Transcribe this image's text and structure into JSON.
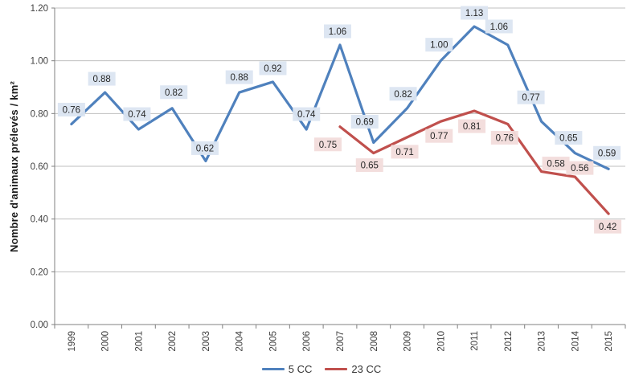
{
  "chart_data": {
    "type": "line",
    "title": "",
    "xlabel": "",
    "ylabel": "Nombre d'animaux prélevés / km²",
    "x": [
      1999,
      2000,
      2001,
      2002,
      2003,
      2004,
      2005,
      2006,
      2007,
      2008,
      2009,
      2010,
      2011,
      2012,
      2013,
      2014,
      2015
    ],
    "series": [
      {
        "name": "5 CC",
        "color": "#4F81BD",
        "label_bg": "#DBE5F1",
        "start_index": 0,
        "values": [
          0.76,
          0.88,
          0.74,
          0.82,
          0.62,
          0.88,
          0.92,
          0.74,
          1.06,
          0.69,
          0.82,
          1.0,
          1.13,
          1.06,
          0.77,
          0.65,
          0.59
        ],
        "label_dx": [
          0,
          -4,
          -2,
          2,
          -1,
          0,
          0,
          0,
          -3,
          -11,
          -5,
          -2,
          0,
          -11,
          -13,
          -8,
          -2
        ],
        "label_dy": [
          -18,
          -17,
          -19,
          -20,
          -16,
          -19,
          -17,
          -19,
          -17,
          -26,
          -18,
          -20,
          -17,
          -23,
          -30,
          -19,
          -20
        ]
      },
      {
        "name": "23 CC",
        "color": "#C0504D",
        "label_bg": "#F2DCDB",
        "start_index": 8,
        "values": [
          0.75,
          0.65,
          0.71,
          0.77,
          0.81,
          0.76,
          0.58,
          0.56,
          0.42
        ],
        "label_dx": [
          -15,
          -5,
          -3,
          -2,
          -3,
          -4,
          18,
          6,
          -1
        ],
        "label_dy": [
          22,
          15,
          18,
          18,
          19,
          17,
          -10,
          -11,
          16
        ]
      }
    ],
    "ylim": [
      0.0,
      1.2
    ],
    "ytick_step": 0.2,
    "ytick_labels": [
      "0.00",
      "0.20",
      "0.40",
      "0.60",
      "0.80",
      "1.00",
      "1.20"
    ],
    "label_decimals": 2,
    "grid": "horizontal",
    "legend_position": "bottom",
    "colors": {
      "gridline": "#BFBFBF",
      "axis": "#808080",
      "tick_text": "#404040",
      "label_text": "#262626"
    }
  }
}
